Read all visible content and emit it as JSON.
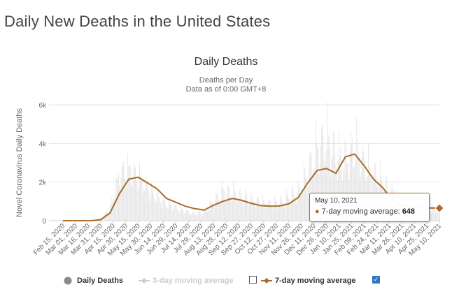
{
  "page": {
    "title": "Daily New Deaths in the United States"
  },
  "chart_data": {
    "type": "bar+line",
    "title": "Daily Deaths",
    "subtitle": "Deaths per Day",
    "note": "Data as of 0:00 GMT+8",
    "ylabel": "Novel Coronavirus Daily Deaths",
    "xlabel": "",
    "ylim": [
      0,
      6000
    ],
    "y_ticks": [
      0,
      2000,
      4000,
      6000
    ],
    "y_tick_labels": [
      "0",
      "2k",
      "4k",
      "6k"
    ],
    "grid": true,
    "x_tick_labels": [
      "Feb 15, 2020",
      "Mar 01, 2020",
      "Mar 16, 2020",
      "Mar 31, 2020",
      "Apr 15, 2020",
      "Apr 30, 2020",
      "May 15, 2020",
      "May 30, 2020",
      "Jun 14, 2020",
      "Jun 29, 2020",
      "Jul 14, 2020",
      "Jul 29, 2020",
      "Aug 13, 2020",
      "Aug 28, 2020",
      "Sep 12, 2020",
      "Sep 27, 2020",
      "Oct 12, 2020",
      "Oct 27, 2020",
      "Nov 11, 2020",
      "Nov 26, 2020",
      "Dec 11, 2020",
      "Dec 26, 2020",
      "Jan 10, 2021",
      "Jan 25, 2021",
      "Feb 09, 2021",
      "Feb 24, 2021",
      "Mar 11, 2021",
      "Mar 26, 2021",
      "Apr 10, 2021",
      "Apr 25, 2021",
      "May 10, 2021"
    ],
    "series": [
      {
        "name": "7-day moving average",
        "color": "#a66d2a",
        "values": [
          0,
          0,
          0,
          0,
          50,
          400,
          1400,
          2150,
          2250,
          1950,
          1650,
          1150,
          950,
          750,
          620,
          550,
          800,
          1000,
          1150,
          1050,
          900,
          780,
          750,
          760,
          870,
          1200,
          1950,
          2600,
          2700,
          2450,
          3300,
          3450,
          2850,
          2150,
          1700,
          1050,
          800,
          700,
          650,
          660,
          648
        ]
      },
      {
        "name": "Daily Deaths",
        "color": "#e3e3e3",
        "values": [
          0,
          0,
          0,
          0,
          80,
          700,
          2500,
          2700,
          2400,
          1800,
          1300,
          900,
          700,
          500,
          400,
          450,
          1100,
          1600,
          1500,
          1300,
          1100,
          1000,
          900,
          1000,
          1300,
          1600,
          2700,
          3900,
          4400,
          3500,
          3200,
          4000,
          3000,
          2500,
          2000,
          1500,
          900,
          800,
          650,
          600,
          550
        ]
      },
      {
        "name": "3-day moving average",
        "color": "#cccccc",
        "values": []
      }
    ],
    "tooltip": {
      "date": "May 10, 2021",
      "series": "7-day moving average",
      "value": 648
    },
    "legend": {
      "placement": "bottom-center",
      "items": [
        {
          "label": "Daily Deaths",
          "visible": true
        },
        {
          "label": "3-day moving average",
          "visible": false,
          "checked": false
        },
        {
          "label": "7-day moving average",
          "visible": true,
          "checked": true
        }
      ]
    }
  },
  "colors": {
    "accent": "#a66d2a",
    "bars": "#e3e3e3",
    "grid": "#e6e6e6",
    "checkbox": "#2a76c4"
  }
}
